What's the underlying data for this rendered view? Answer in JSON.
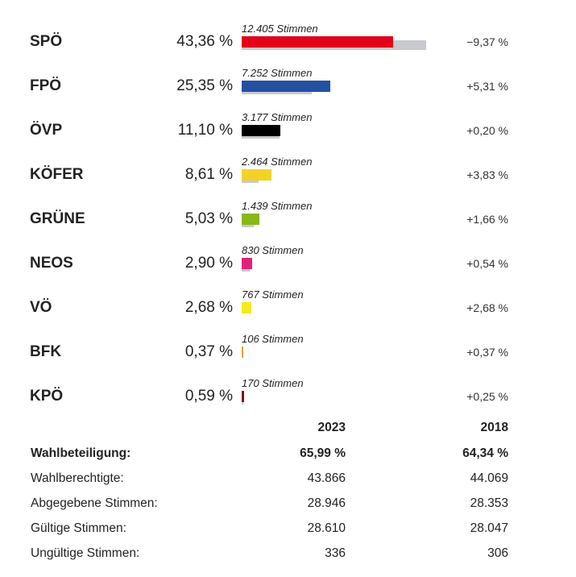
{
  "chart_data": {
    "type": "bar",
    "categories": [
      "SPÖ",
      "FPÖ",
      "ÖVP",
      "KÖFER",
      "GRÜNE",
      "NEOS",
      "VÖ",
      "BFK",
      "KPÖ"
    ],
    "series": [
      {
        "values": [
          43.36,
          25.35,
          11.1,
          8.61,
          5.03,
          2.9,
          2.68,
          0.37,
          0.59
        ]
      },
      {
        "values": [
          52.73,
          20.04,
          10.9,
          4.78,
          3.37,
          2.36,
          0,
          0,
          0.34
        ]
      }
    ],
    "percent_labels": [
      "43,36 %",
      "25,35 %",
      "11,10 %",
      "8,61 %",
      "5,03 %",
      "2,90 %",
      "2,68 %",
      "0,37 %",
      "0,59 %"
    ],
    "votes_labels": [
      "12.405 Stimmen",
      "7.252 Stimmen",
      "3.177 Stimmen",
      "2.464 Stimmen",
      "1.439 Stimmen",
      "830 Stimmen",
      "767 Stimmen",
      "106 Stimmen",
      "170 Stimmen"
    ],
    "change_labels": [
      "−9,37 %",
      "+5,31 %",
      "+0,20 %",
      "+3,83 %",
      "+1,66 %",
      "+0,54 %",
      "+2,68 %",
      "+0,37 %",
      "+0,25 %"
    ],
    "colors": [
      "#e2001a",
      "#2350a0",
      "#000000",
      "#f2d229",
      "#86b817",
      "#e0237a",
      "#f7e81c",
      "#e8a23a",
      "#8b0a1e"
    ],
    "previous_color": "#c8c9cc"
  },
  "stats": {
    "headers": [
      "2023",
      "2018"
    ],
    "rows": [
      {
        "label": "Wahlbeteiligung:",
        "v2023": "65,99 %",
        "v2018": "64,34 %",
        "bold": true
      },
      {
        "label": "Wahlberechtigte:",
        "v2023": "43.866",
        "v2018": "44.069",
        "bold": false
      },
      {
        "label": "Abgegebene Stimmen:",
        "v2023": "28.946",
        "v2018": "28.353",
        "bold": false
      },
      {
        "label": "Gültige Stimmen:",
        "v2023": "28.610",
        "v2018": "28.047",
        "bold": false
      },
      {
        "label": "Ungültige Stimmen:",
        "v2023": "336",
        "v2018": "306",
        "bold": false
      }
    ]
  }
}
